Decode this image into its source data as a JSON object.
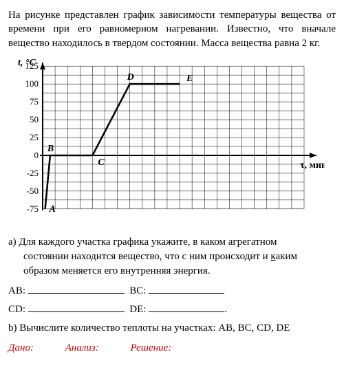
{
  "problem_text": "На рисунке представлен график зависимости температуры вещества от времени при его равномерном нагревании. Известно, что вначале вещество находилось в твердом состоянии. Масса вещества равна 2 кг.",
  "chart": {
    "type": "line",
    "y_label": "t, °C",
    "x_label": "τ, мин",
    "y_ticks": [
      -75,
      -50,
      -25,
      0,
      25,
      50,
      75,
      100,
      125
    ],
    "ylim": [
      -80,
      130
    ],
    "x_minor_step": 1,
    "y_minor_step": 12.5,
    "point_labels": [
      "A",
      "B",
      "C",
      "D",
      "E"
    ],
    "points_xy": [
      [
        0.2,
        -75
      ],
      [
        0.6,
        0
      ],
      [
        4,
        0
      ],
      [
        7,
        100
      ],
      [
        11,
        100
      ]
    ],
    "line_color": "#000000",
    "line_width": 2.5,
    "grid_color": "#000000",
    "grid_width": 0.5,
    "axis_color": "#000000",
    "axis_width": 2,
    "background": "#fdfdfb",
    "label_fontsize": 14,
    "tick_fontsize": 13,
    "point_fontsize": 14
  },
  "question_a_lead": "a) Для каждого участка графика укажите, в каком агрегатном",
  "question_a_cont1": "состоянии находится вещество, что с ним происходит и ",
  "question_a_cont1u": "к",
  "question_a_cont1b": "аким",
  "question_a_cont2": "образом меняется его внутренняя энергия.",
  "labels": {
    "AB": "AB:",
    "BC": "BC:",
    "CD": "CD:",
    "DE": "DE:"
  },
  "period": ".",
  "question_b": "b) Вычислите количество теплоты на участках: AB, BC, CD, DE",
  "footer": {
    "given": "Дано:",
    "analysis": "Анализ:",
    "solution": "Решение:"
  }
}
